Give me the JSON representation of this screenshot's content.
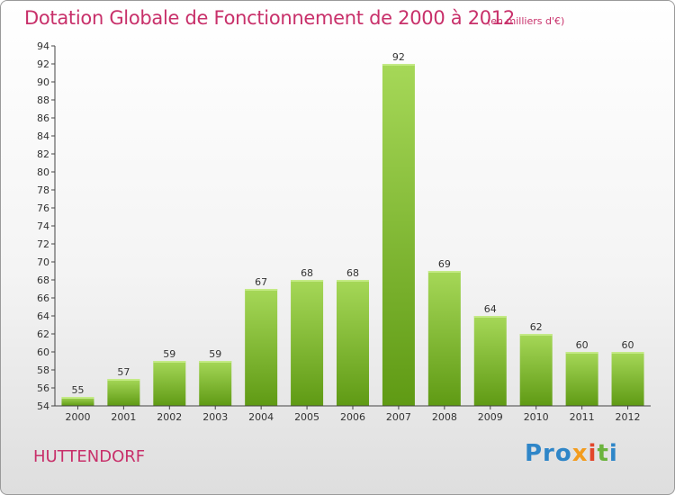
{
  "header": {
    "title": "Dotation Globale de Fonctionnement de 2000 à 2012",
    "unit": "(en milliers d'€)"
  },
  "footer": {
    "commune": "HUTTENDORF",
    "logo": [
      "Pro",
      "x",
      "i",
      "t",
      "i"
    ]
  },
  "colors": {
    "title": "#c8306a",
    "bar_top": "#a6d858",
    "bar_bottom": "#5f9a14"
  },
  "chart_data": {
    "type": "bar",
    "title": "Dotation Globale de Fonctionnement de 2000 à 2012",
    "subtitle": "(en milliers d'€)",
    "xlabel": "",
    "ylabel": "",
    "categories": [
      "2000",
      "2001",
      "2002",
      "2003",
      "2004",
      "2005",
      "2006",
      "2007",
      "2008",
      "2009",
      "2010",
      "2011",
      "2012"
    ],
    "values": [
      55,
      57,
      59,
      59,
      67,
      68,
      68,
      92,
      69,
      64,
      62,
      60,
      60
    ],
    "data_labels": [
      "55",
      "57",
      "59",
      "59",
      "67",
      "68",
      "68",
      "92",
      "69",
      "64",
      "62",
      "60",
      "60"
    ],
    "ylim": [
      54,
      94
    ],
    "ytick_step": 2,
    "grid": false,
    "legend": "none"
  }
}
